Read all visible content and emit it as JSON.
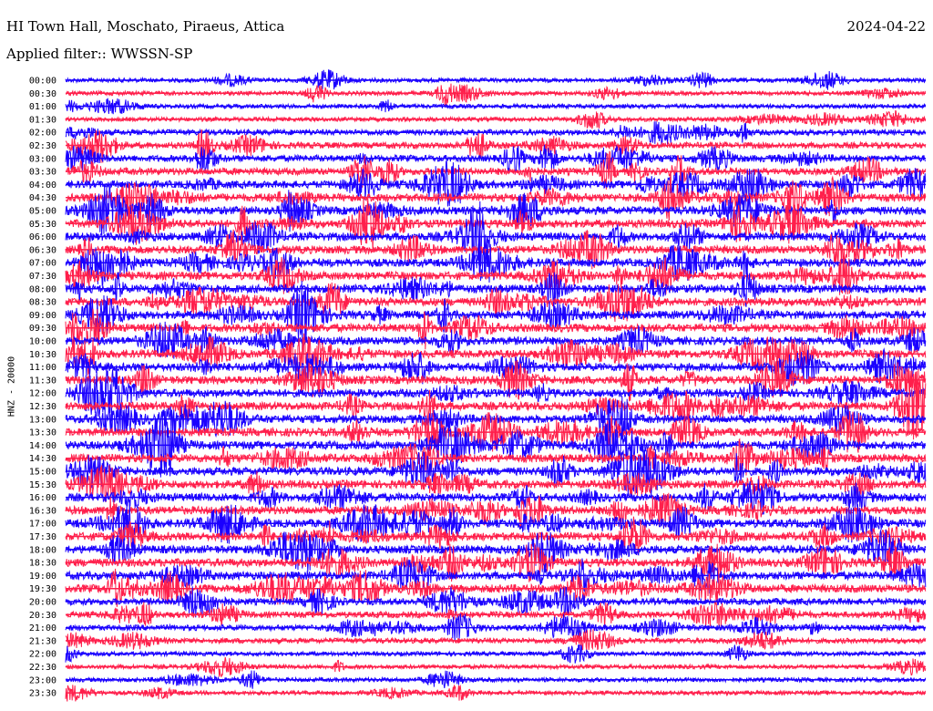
{
  "header": {
    "station": "HI Town Hall, Moschato, Piraeus, Attica",
    "date": "2024-04-22",
    "filter": "Applied filter:: WWSSN-SP"
  },
  "chart_data": {
    "type": "line",
    "ylabel": "HNZ - 20000",
    "row_labels": [
      "00:00",
      "00:30",
      "01:00",
      "01:30",
      "02:00",
      "02:30",
      "03:00",
      "03:30",
      "04:00",
      "04:30",
      "05:00",
      "05:30",
      "06:00",
      "06:30",
      "07:00",
      "07:30",
      "08:00",
      "08:30",
      "09:00",
      "09:30",
      "10:00",
      "10:30",
      "11:00",
      "11:30",
      "12:00",
      "12:30",
      "13:00",
      "13:30",
      "14:00",
      "14:30",
      "15:00",
      "15:30",
      "16:00",
      "16:30",
      "17:00",
      "17:30",
      "18:00",
      "18:30",
      "19:00",
      "19:30",
      "20:00",
      "20:30",
      "21:00",
      "21:30",
      "22:00",
      "22:30",
      "23:00",
      "23:30"
    ],
    "colors": [
      "#1a00ff",
      "#ff1f4b"
    ],
    "grid": false,
    "legend": "none"
  }
}
